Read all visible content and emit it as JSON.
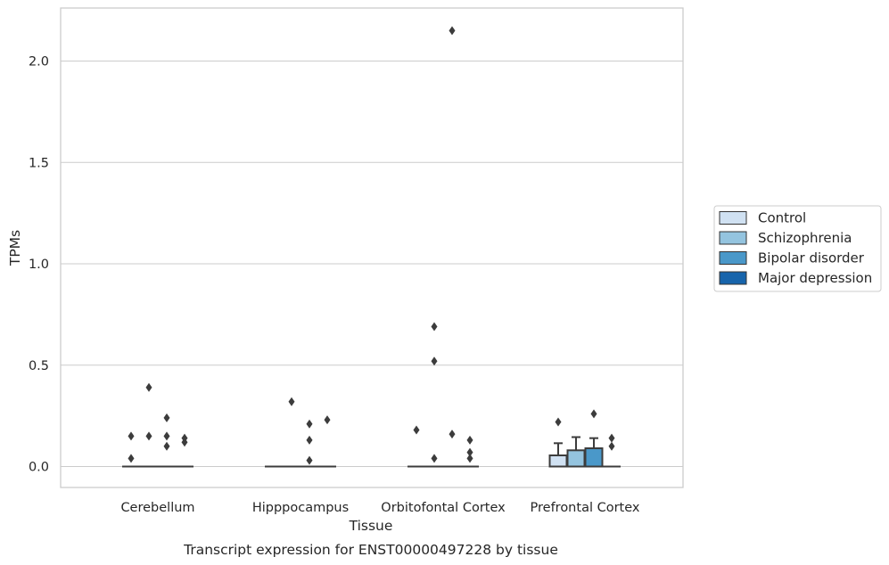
{
  "chart_data": {
    "type": "box",
    "caption": "Transcript expression for ENST00000497228 by tissue",
    "xlabel": "Tissue",
    "ylabel": "TPMs",
    "ylim": [
      -0.1,
      2.26
    ],
    "yticks": [
      0.0,
      0.5,
      1.0,
      1.5,
      2.0
    ],
    "ytick_labels": [
      "0.0",
      "0.5",
      "1.0",
      "1.5",
      "2.0"
    ],
    "grid": "horizontal",
    "legend_position": "right",
    "categories": [
      "Cerebellum",
      "Hipppocampus",
      "Orbitofontal Cortex",
      "Prefrontal Cortex"
    ],
    "series": [
      {
        "name": "Control",
        "color": "#d0e1f2"
      },
      {
        "name": "Schizophrenia",
        "color": "#94c4df"
      },
      {
        "name": "Bipolar disorder",
        "color": "#4a98c9"
      },
      {
        "name": "Major depression",
        "color": "#1764ab"
      }
    ],
    "boxes": [
      {
        "category": "Cerebellum",
        "series": "Control",
        "q1": 0,
        "median": 0,
        "q3": 0,
        "whisker_low": 0,
        "whisker_high": 0,
        "outliers": [
          0.04,
          0.15
        ]
      },
      {
        "category": "Cerebellum",
        "series": "Schizophrenia",
        "q1": 0,
        "median": 0,
        "q3": 0,
        "whisker_low": 0,
        "whisker_high": 0,
        "outliers": [
          0.15,
          0.39
        ]
      },
      {
        "category": "Cerebellum",
        "series": "Bipolar disorder",
        "q1": 0,
        "median": 0,
        "q3": 0,
        "whisker_low": 0,
        "whisker_high": 0,
        "outliers": [
          0.1,
          0.15,
          0.24
        ]
      },
      {
        "category": "Cerebellum",
        "series": "Major depression",
        "q1": 0,
        "median": 0,
        "q3": 0,
        "whisker_low": 0,
        "whisker_high": 0,
        "outliers": [
          0.12,
          0.14
        ]
      },
      {
        "category": "Hipppocampus",
        "series": "Control",
        "q1": 0,
        "median": 0,
        "q3": 0,
        "whisker_low": 0,
        "whisker_high": 0,
        "outliers": []
      },
      {
        "category": "Hipppocampus",
        "series": "Schizophrenia",
        "q1": 0,
        "median": 0,
        "q3": 0,
        "whisker_low": 0,
        "whisker_high": 0,
        "outliers": [
          0.32
        ]
      },
      {
        "category": "Hipppocampus",
        "series": "Bipolar disorder",
        "q1": 0,
        "median": 0,
        "q3": 0,
        "whisker_low": 0,
        "whisker_high": 0,
        "outliers": [
          0.03,
          0.13,
          0.21
        ]
      },
      {
        "category": "Hipppocampus",
        "series": "Major depression",
        "q1": 0,
        "median": 0,
        "q3": 0,
        "whisker_low": 0,
        "whisker_high": 0,
        "outliers": [
          0.23
        ]
      },
      {
        "category": "Orbitofontal Cortex",
        "series": "Control",
        "q1": 0,
        "median": 0,
        "q3": 0,
        "whisker_low": 0,
        "whisker_high": 0,
        "outliers": [
          0.18
        ]
      },
      {
        "category": "Orbitofontal Cortex",
        "series": "Schizophrenia",
        "q1": 0,
        "median": 0,
        "q3": 0,
        "whisker_low": 0,
        "whisker_high": 0,
        "outliers": [
          0.04,
          0.52,
          0.69
        ]
      },
      {
        "category": "Orbitofontal Cortex",
        "series": "Bipolar disorder",
        "q1": 0,
        "median": 0,
        "q3": 0,
        "whisker_low": 0,
        "whisker_high": 0,
        "outliers": [
          0.16,
          2.15
        ]
      },
      {
        "category": "Orbitofontal Cortex",
        "series": "Major depression",
        "q1": 0,
        "median": 0,
        "q3": 0,
        "whisker_low": 0,
        "whisker_high": 0,
        "outliers": [
          0.04,
          0.07,
          0.13
        ]
      },
      {
        "category": "Prefrontal Cortex",
        "series": "Control",
        "q1": 0,
        "median": 0,
        "q3": 0.055,
        "whisker_low": 0,
        "whisker_high": 0.115,
        "outliers": [
          0.22
        ]
      },
      {
        "category": "Prefrontal Cortex",
        "series": "Schizophrenia",
        "q1": 0,
        "median": 0,
        "q3": 0.08,
        "whisker_low": 0,
        "whisker_high": 0.145,
        "outliers": []
      },
      {
        "category": "Prefrontal Cortex",
        "series": "Bipolar disorder",
        "q1": 0,
        "median": 0,
        "q3": 0.09,
        "whisker_low": 0,
        "whisker_high": 0.14,
        "outliers": [
          0.26
        ]
      },
      {
        "category": "Prefrontal Cortex",
        "series": "Major depression",
        "q1": 0,
        "median": 0,
        "q3": 0,
        "whisker_low": 0,
        "whisker_high": 0,
        "outliers": [
          0.1,
          0.14
        ]
      }
    ]
  }
}
